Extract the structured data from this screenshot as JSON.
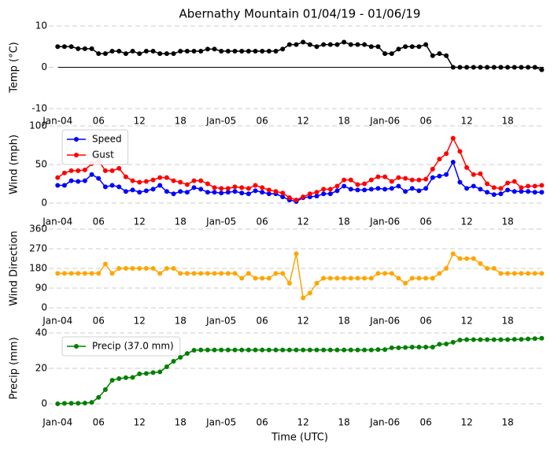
{
  "chart_data": [
    {
      "type": "line",
      "title": "Abernathy Mountain 01/04/19 - 01/06/19",
      "ylabel": "Temp (°C)",
      "x": [
        0,
        1,
        2,
        3,
        4,
        5,
        6,
        7,
        8,
        9,
        10,
        11,
        12,
        13,
        14,
        15,
        16,
        17,
        18,
        19,
        20,
        21,
        22,
        23,
        24,
        25,
        26,
        27,
        28,
        29,
        30,
        31,
        32,
        33,
        34,
        35,
        36,
        37,
        38,
        39,
        40,
        41,
        42,
        43,
        44,
        45,
        46,
        47,
        48,
        49,
        50,
        51,
        52,
        53,
        54,
        55,
        56,
        57,
        58,
        59,
        60,
        61,
        62,
        63,
        64,
        65,
        66,
        67,
        68,
        69,
        70,
        71
      ],
      "xlim": [
        -1.3,
        71.3
      ],
      "xticks": [
        {
          "value": 0,
          "label": "Jan-04"
        },
        {
          "value": 6,
          "label": "06"
        },
        {
          "value": 12,
          "label": "12"
        },
        {
          "value": 18,
          "label": "18"
        },
        {
          "value": 24,
          "label": "Jan-05"
        },
        {
          "value": 30,
          "label": "06"
        },
        {
          "value": 36,
          "label": "12"
        },
        {
          "value": 42,
          "label": "18"
        },
        {
          "value": 48,
          "label": "Jan-06"
        },
        {
          "value": 54,
          "label": "06"
        },
        {
          "value": 60,
          "label": "12"
        },
        {
          "value": 66,
          "label": "18"
        }
      ],
      "ylim": [
        -10,
        10
      ],
      "yticks": [
        -10,
        0,
        10
      ],
      "grid": true,
      "hline": 0,
      "hline_color": "#000000",
      "series": [
        {
          "color": "#000000",
          "values": [
            5,
            5,
            5,
            4.5,
            4.5,
            4.5,
            3.3,
            3.3,
            3.9,
            3.9,
            3.3,
            3.9,
            3.3,
            3.9,
            3.9,
            3.3,
            3.3,
            3.3,
            3.9,
            3.9,
            3.9,
            3.9,
            4.4,
            4.4,
            3.9,
            3.9,
            3.9,
            3.9,
            3.9,
            3.9,
            3.9,
            3.9,
            3.9,
            4.4,
            5.5,
            5.5,
            6.1,
            5.5,
            5,
            5.5,
            5.5,
            5.5,
            6.1,
            5.5,
            5.5,
            5.5,
            5,
            5,
            3.3,
            3.3,
            4.4,
            5,
            5,
            5,
            5.5,
            2.8,
            3.3,
            2.8,
            0,
            0,
            0,
            0,
            0,
            0,
            0,
            0,
            0,
            0,
            0,
            0,
            0,
            -0.6
          ]
        }
      ]
    },
    {
      "type": "line",
      "ylabel": "Wind (mph)",
      "x": [
        0,
        1,
        2,
        3,
        4,
        5,
        6,
        7,
        8,
        9,
        10,
        11,
        12,
        13,
        14,
        15,
        16,
        17,
        18,
        19,
        20,
        21,
        22,
        23,
        24,
        25,
        26,
        27,
        28,
        29,
        30,
        31,
        32,
        33,
        34,
        35,
        36,
        37,
        38,
        39,
        40,
        41,
        42,
        43,
        44,
        45,
        46,
        47,
        48,
        49,
        50,
        51,
        52,
        53,
        54,
        55,
        56,
        57,
        58,
        59,
        60,
        61,
        62,
        63,
        64,
        65,
        66,
        67,
        68,
        69,
        70,
        71
      ],
      "xlim": [
        -1.3,
        71.3
      ],
      "xticks": [
        {
          "value": 0,
          "label": "Jan-04"
        },
        {
          "value": 6,
          "label": "06"
        },
        {
          "value": 12,
          "label": "12"
        },
        {
          "value": 18,
          "label": "18"
        },
        {
          "value": 24,
          "label": "Jan-05"
        },
        {
          "value": 30,
          "label": "06"
        },
        {
          "value": 36,
          "label": "12"
        },
        {
          "value": 42,
          "label": "18"
        },
        {
          "value": 48,
          "label": "Jan-06"
        },
        {
          "value": 54,
          "label": "06"
        },
        {
          "value": 60,
          "label": "12"
        },
        {
          "value": 66,
          "label": "18"
        }
      ],
      "ylim": [
        0,
        100
      ],
      "yticks": [
        0,
        50,
        100
      ],
      "grid": true,
      "legend": "upper left",
      "series": [
        {
          "name": "Speed",
          "color": "#0000ff",
          "values": [
            23,
            23,
            29,
            28,
            29,
            37,
            32,
            21,
            23,
            21,
            15,
            17,
            14,
            16,
            18,
            23,
            15,
            12,
            15,
            14,
            20,
            18,
            14,
            14,
            13,
            14,
            15,
            13,
            12,
            16,
            14,
            12,
            12,
            8,
            4,
            2,
            7,
            8,
            9,
            12,
            12,
            16,
            22,
            18,
            17,
            17,
            18,
            19,
            18,
            19,
            22,
            15,
            19,
            16,
            19,
            33,
            35,
            37,
            53,
            27,
            19,
            22,
            18,
            14,
            11,
            12,
            17,
            15,
            15,
            15,
            14,
            14
          ]
        },
        {
          "name": "Gust",
          "color": "#ff0000",
          "values": [
            33,
            39,
            42,
            42,
            43,
            51,
            55,
            42,
            42,
            45,
            34,
            29,
            27,
            28,
            30,
            33,
            33,
            29,
            27,
            24,
            29,
            29,
            25,
            20,
            19,
            19,
            21,
            20,
            19,
            23,
            20,
            17,
            15,
            13,
            7,
            4,
            8,
            12,
            14,
            18,
            18,
            22,
            30,
            30,
            24,
            25,
            30,
            34,
            34,
            28,
            33,
            32,
            30,
            30,
            31,
            44,
            57,
            64,
            84,
            67,
            46,
            37,
            38,
            25,
            20,
            19,
            26,
            28,
            20,
            22,
            22,
            23
          ]
        }
      ]
    },
    {
      "type": "line",
      "ylabel": "Wind Direction",
      "x": [
        0,
        1,
        2,
        3,
        4,
        5,
        6,
        7,
        8,
        9,
        10,
        11,
        12,
        13,
        14,
        15,
        16,
        17,
        18,
        19,
        20,
        21,
        22,
        23,
        24,
        25,
        26,
        27,
        28,
        29,
        30,
        31,
        32,
        33,
        34,
        35,
        36,
        37,
        38,
        39,
        40,
        41,
        42,
        43,
        44,
        45,
        46,
        47,
        48,
        49,
        50,
        51,
        52,
        53,
        54,
        55,
        56,
        57,
        58,
        59,
        60,
        61,
        62,
        63,
        64,
        65,
        66,
        67,
        68,
        69,
        70,
        71
      ],
      "xlim": [
        -1.3,
        71.3
      ],
      "xticks": [
        {
          "value": 0,
          "label": "Jan-04"
        },
        {
          "value": 6,
          "label": "06"
        },
        {
          "value": 12,
          "label": "12"
        },
        {
          "value": 18,
          "label": "18"
        },
        {
          "value": 24,
          "label": "Jan-05"
        },
        {
          "value": 30,
          "label": "06"
        },
        {
          "value": 36,
          "label": "12"
        },
        {
          "value": 42,
          "label": "18"
        },
        {
          "value": 48,
          "label": "Jan-06"
        },
        {
          "value": 54,
          "label": "06"
        },
        {
          "value": 60,
          "label": "12"
        },
        {
          "value": 66,
          "label": "18"
        }
      ],
      "ylim": [
        0,
        360
      ],
      "yticks": [
        0,
        90,
        180,
        270,
        360
      ],
      "grid": true,
      "series": [
        {
          "color": "#ffa500",
          "values": [
            157,
            157,
            157,
            157,
            157,
            157,
            157,
            200,
            157,
            180,
            180,
            180,
            180,
            180,
            180,
            157,
            180,
            180,
            157,
            157,
            157,
            157,
            157,
            157,
            157,
            157,
            157,
            135,
            157,
            135,
            135,
            135,
            157,
            157,
            112,
            247,
            45,
            67,
            112,
            135,
            135,
            135,
            135,
            135,
            135,
            135,
            135,
            157,
            157,
            157,
            135,
            112,
            135,
            135,
            135,
            135,
            157,
            180,
            247,
            225,
            225,
            225,
            202,
            180,
            180,
            157,
            157,
            157,
            157,
            157,
            157,
            157
          ]
        }
      ]
    },
    {
      "type": "line",
      "ylabel": "Precip (mm)",
      "xlabel": "Time (UTC)",
      "x": [
        0,
        1,
        2,
        3,
        4,
        5,
        6,
        7,
        8,
        9,
        10,
        11,
        12,
        13,
        14,
        15,
        16,
        17,
        18,
        19,
        20,
        21,
        22,
        23,
        24,
        25,
        26,
        27,
        28,
        29,
        30,
        31,
        32,
        33,
        34,
        35,
        36,
        37,
        38,
        39,
        40,
        41,
        42,
        43,
        44,
        45,
        46,
        47,
        48,
        49,
        50,
        51,
        52,
        53,
        54,
        55,
        56,
        57,
        58,
        59,
        60,
        61,
        62,
        63,
        64,
        65,
        66,
        67,
        68,
        69,
        70,
        71
      ],
      "xlim": [
        -1.3,
        71.3
      ],
      "xticks": [
        {
          "value": 0,
          "label": "Jan-04"
        },
        {
          "value": 6,
          "label": "06"
        },
        {
          "value": 12,
          "label": "12"
        },
        {
          "value": 18,
          "label": "18"
        },
        {
          "value": 24,
          "label": "Jan-05"
        },
        {
          "value": 30,
          "label": "06"
        },
        {
          "value": 36,
          "label": "12"
        },
        {
          "value": 42,
          "label": "18"
        },
        {
          "value": 48,
          "label": "Jan-06"
        },
        {
          "value": 54,
          "label": "06"
        },
        {
          "value": 60,
          "label": "12"
        },
        {
          "value": 66,
          "label": "18"
        }
      ],
      "ylim": [
        0,
        40
      ],
      "yticks": [
        0,
        20,
        40
      ],
      "grid": true,
      "legend": "upper left",
      "series": [
        {
          "name": "Precip (37.0 mm)",
          "color": "#008000",
          "values": [
            0,
            0.2,
            0.3,
            0.3,
            0.4,
            0.8,
            3.6,
            8,
            13.3,
            14.2,
            14.7,
            14.9,
            16.9,
            17.1,
            17.6,
            18,
            20.9,
            24,
            26.2,
            28.4,
            30.2,
            30.4,
            30.4,
            30.4,
            30.4,
            30.4,
            30.4,
            30.4,
            30.4,
            30.4,
            30.4,
            30.4,
            30.4,
            30.4,
            30.4,
            30.4,
            30.4,
            30.4,
            30.4,
            30.4,
            30.4,
            30.4,
            30.4,
            30.4,
            30.4,
            30.4,
            30.4,
            30.6,
            30.6,
            31.6,
            31.6,
            31.8,
            32,
            32,
            32,
            32,
            33.6,
            33.8,
            34.7,
            36,
            36.2,
            36.2,
            36.2,
            36.2,
            36.2,
            36.2,
            36.2,
            36.4,
            36.4,
            36.6,
            36.8,
            37
          ]
        }
      ]
    }
  ]
}
